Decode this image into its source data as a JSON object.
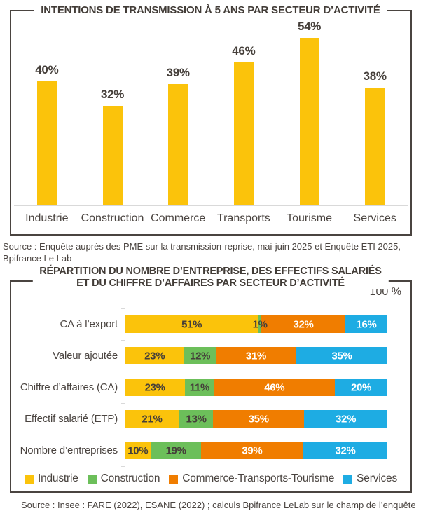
{
  "colors": {
    "industrie_yellow": "#FBC30B",
    "construction_green": "#6CBF5A",
    "commerce_orange": "#F07D00",
    "services_blue": "#1EACE3",
    "dark_text": "#4A4440",
    "box_border": "#4A4440",
    "axis_gray": "#D9D9D9"
  },
  "chart_data": [
    {
      "type": "bar",
      "title": "INTENTIONS DE TRANSMISSION À 5 ANS PAR SECTEUR D’ACTIVITÉ",
      "categories": [
        "Industrie",
        "Construction",
        "Commerce",
        "Transports",
        "Tourisme",
        "Services"
      ],
      "values": [
        40,
        32,
        39,
        46,
        54,
        38
      ],
      "value_labels": [
        "40%",
        "32%",
        "39%",
        "46%",
        "54%",
        "38%"
      ],
      "bar_color": "#FBC30B",
      "ylim": [
        0,
        60
      ],
      "grid": false,
      "source": "Source : Enquête auprès des PME sur la transmission-reprise, mai-juin 2025 et Enquête ETI 2025, Bpifrance Le Lab"
    },
    {
      "type": "bar",
      "orientation": "horizontal-stacked",
      "title_line1": "RÉPARTITION DU NOMBRE D’ENTREPRISE, DES EFFECTIFS SALARIÉS",
      "title_line2": "ET DU CHIFFRE D’AFFAIRES PAR SECTEUR D’ACTIVITÉ",
      "axis_max_label": "100 %",
      "xlim": [
        0,
        100
      ],
      "categories": [
        "CA à l’export",
        "Valeur ajoutée",
        "Chiffre d’affaires (CA)",
        "Effectif salarié (ETP)",
        "Nombre d’entreprises"
      ],
      "series": [
        {
          "name": "Industrie",
          "color": "#FBC30B",
          "label_color": "#453F3A",
          "values": [
            51,
            23,
            23,
            21,
            10
          ]
        },
        {
          "name": "Construction",
          "color": "#6CBF5A",
          "label_color": "#453F3A",
          "values": [
            1,
            12,
            11,
            13,
            19
          ]
        },
        {
          "name": "Commerce-Transports-Tourisme",
          "color": "#F07D00",
          "label_color": "#FFFFFF",
          "values": [
            32,
            31,
            46,
            35,
            39
          ]
        },
        {
          "name": "Services",
          "color": "#1EACE3",
          "label_color": "#FFFFFF",
          "values": [
            16,
            35,
            20,
            32,
            32
          ]
        }
      ],
      "legend_position": "bottom",
      "source": "Source : Insee : FARE (2022), ESANE (2022) ; calculs Bpifrance LeLab sur le champ de l’enquête"
    }
  ]
}
